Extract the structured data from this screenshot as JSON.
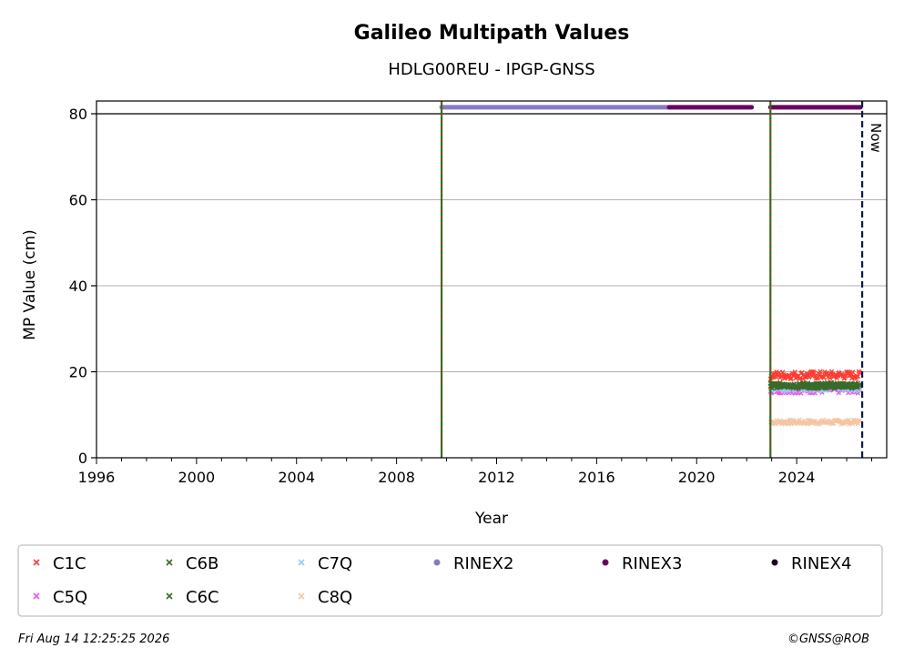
{
  "chart_data": {
    "type": "scatter",
    "title": "Galileo Multipath Values",
    "subtitle": "HDLG00REU - IPGP-GNSS",
    "xlabel": "Year",
    "ylabel": "MP Value (cm)",
    "xlim": [
      1996,
      2027.6
    ],
    "ylim": [
      0,
      80
    ],
    "x_ticks": [
      "1996",
      "2000",
      "2004",
      "2008",
      "2012",
      "2016",
      "2020",
      "2024"
    ],
    "y_ticks": [
      "0",
      "20",
      "40",
      "60",
      "80"
    ],
    "grid": "horizontal",
    "legend_position": "bottom",
    "now_label": "Now",
    "now_x": 2026.62,
    "event_lines_x": [
      2009.8,
      2022.95
    ],
    "series": [
      {
        "name": "C1C",
        "marker": "x",
        "color": "#ff3b30",
        "x_range": [
          2022.95,
          2026.55
        ],
        "mean": 19.2,
        "spread": 0.9
      },
      {
        "name": "C5Q",
        "marker": "x",
        "color": "#ee55ee",
        "x_range": [
          2022.95,
          2026.55
        ],
        "mean": 15.8,
        "spread": 0.8
      },
      {
        "name": "C6B",
        "marker": "x",
        "color": "#3a6b2a",
        "x_range": [
          2022.95,
          2026.55
        ],
        "mean": 16.7,
        "spread": 0.6
      },
      {
        "name": "C6C",
        "marker": "x",
        "color": "#3a6b2a",
        "x_range": [
          2022.95,
          2026.55
        ],
        "mean": 16.9,
        "spread": 0.6
      },
      {
        "name": "C7Q",
        "marker": "x",
        "color": "#9ec8ee",
        "x_range": [
          2022.95,
          2026.55
        ],
        "mean": 16.4,
        "spread": 0.9
      },
      {
        "name": "C8Q",
        "marker": "x",
        "color": "#f5c6a5",
        "x_range": [
          2022.95,
          2026.55
        ],
        "mean": 8.3,
        "spread": 0.5
      },
      {
        "name": "RINEX2",
        "marker": "dot",
        "color": "#8878c8",
        "segments": [
          [
            2009.8,
            2018.9
          ]
        ],
        "y": 81.5
      },
      {
        "name": "RINEX3",
        "marker": "dot",
        "color": "#6b0060",
        "segments": [
          [
            2018.9,
            2022.2
          ],
          [
            2022.95,
            2026.55
          ]
        ],
        "y": 81.5
      },
      {
        "name": "RINEX4",
        "marker": "dot",
        "color": "#1a0020",
        "segments": [],
        "y": 81.5
      }
    ]
  },
  "footer": {
    "date": "Fri Aug 14 12:25:25 2026",
    "credit": "©GNSS@ROB"
  }
}
